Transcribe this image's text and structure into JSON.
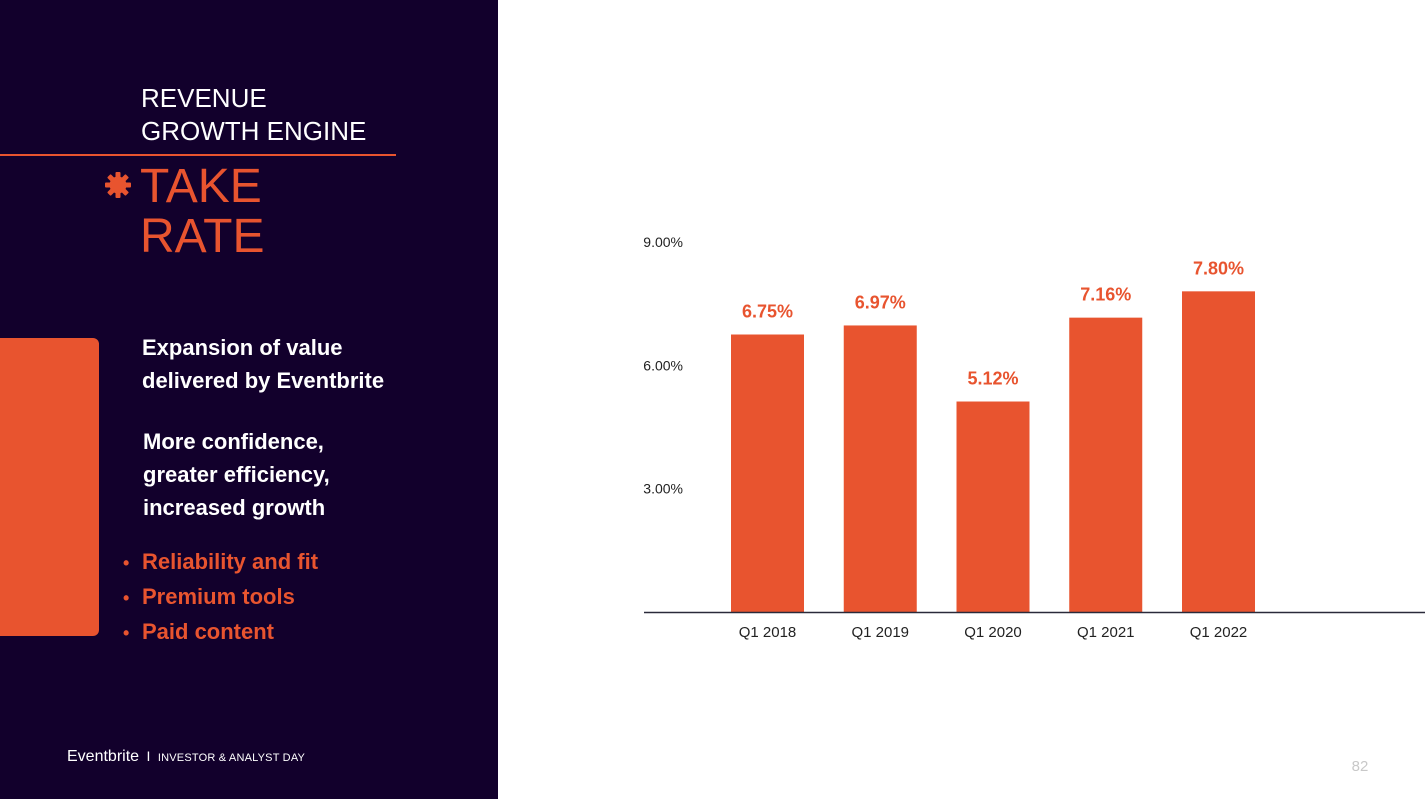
{
  "header": {
    "section_line1": "REVENUE",
    "section_line2": "GROWTH ENGINE",
    "title_line1": "TAKE",
    "title_line2": "RATE"
  },
  "content": {
    "subhead_line1": "Expansion of value",
    "subhead_line2": "delivered by Eventbrite",
    "body_line1": "More confidence,",
    "body_line2": "greater efficiency,",
    "body_line3": "increased growth",
    "bullets": [
      "Reliability and fit",
      "Premium tools",
      "Paid content"
    ]
  },
  "footer": {
    "brand": "Eventbrite",
    "separator": "I",
    "event": "INVESTOR & ANALYST DAY"
  },
  "page_number": "82",
  "colors": {
    "accent": "#e8542f",
    "panel": "#12002c"
  },
  "icons": {
    "title_marker": "gear-icon"
  },
  "chart_data": {
    "type": "bar",
    "categories": [
      "Q1 2018",
      "Q1 2019",
      "Q1 2020",
      "Q1 2021",
      "Q1 2022"
    ],
    "values": [
      6.75,
      6.97,
      5.12,
      7.16,
      7.8
    ],
    "data_labels": [
      "6.75%",
      "6.97%",
      "5.12%",
      "7.16%",
      "7.80%"
    ],
    "ylim": [
      0,
      9
    ],
    "yticks": [
      3,
      6,
      9
    ],
    "ytick_labels": [
      "3.00%",
      "6.00%",
      "9.00%"
    ],
    "grid": false,
    "title": "",
    "xlabel": "",
    "ylabel": ""
  }
}
